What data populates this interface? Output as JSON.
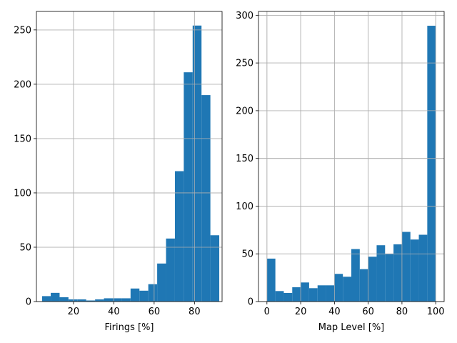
{
  "chart_data": [
    {
      "type": "bar",
      "histogram": true,
      "xlabel": "Firings [%]",
      "ylabel": "",
      "xlim": [
        1.6,
        93.7
      ],
      "ylim": [
        0,
        267
      ],
      "xticks": [
        20,
        40,
        60,
        80
      ],
      "yticks": [
        0,
        50,
        100,
        150,
        200,
        250
      ],
      "grid": true,
      "bar_color": "#1f77b4",
      "bin_edges": [
        4.4,
        8.7,
        13.1,
        17.5,
        21.9,
        26.3,
        30.7,
        35.1,
        39.5,
        43.9,
        48.3,
        52.7,
        57.1,
        61.5,
        65.9,
        70.3,
        74.7,
        79.1,
        83.5,
        87.9,
        92.3
      ],
      "values": [
        5,
        8,
        4,
        2,
        2,
        1,
        2,
        3,
        3,
        3,
        12,
        10,
        16,
        35,
        58,
        120,
        211,
        254,
        190,
        61
      ]
    },
    {
      "type": "bar",
      "histogram": true,
      "xlabel": "Map Level [%]",
      "ylabel": "",
      "xlim": [
        -5,
        105
      ],
      "ylim": [
        0,
        304
      ],
      "xticks": [
        0,
        20,
        40,
        60,
        80,
        100
      ],
      "yticks": [
        0,
        50,
        100,
        150,
        200,
        250,
        300
      ],
      "grid": true,
      "bar_color": "#1f77b4",
      "bin_edges": [
        0,
        5,
        10,
        15,
        20,
        25,
        30,
        35,
        40,
        45,
        50,
        55,
        60,
        65,
        70,
        75,
        80,
        85,
        90,
        95,
        100
      ],
      "values": [
        45,
        11,
        9,
        15,
        20,
        14,
        17,
        17,
        29,
        26,
        55,
        34,
        47,
        59,
        50,
        60,
        73,
        65,
        70,
        289
      ]
    }
  ]
}
